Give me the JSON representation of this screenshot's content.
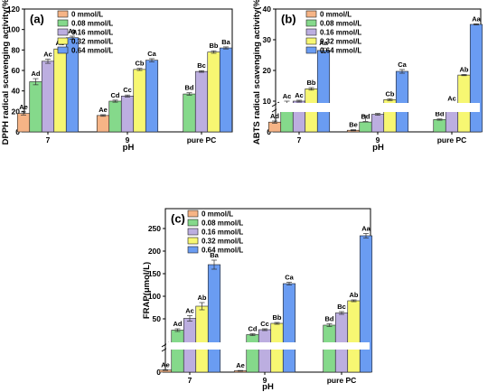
{
  "chart_data": [
    {
      "panel": "(a)",
      "type": "bar",
      "categories": [
        "7",
        "9",
        "pure PC"
      ],
      "xlabel": "pH",
      "ylabel": "DPPH radical scavenging activity(%)",
      "ylim": [
        0,
        120
      ],
      "yticks": [
        0,
        20,
        40,
        60,
        80,
        100,
        120
      ],
      "legend_position": "top-left",
      "series": [
        {
          "name": "0 mmol/L",
          "color": "#f6b486",
          "values": [
            18,
            16,
            null
          ],
          "errors": [
            1.5,
            0.8,
            null
          ],
          "labels": [
            "Ae",
            "Ae",
            null
          ]
        },
        {
          "name": "0.08 mmol/L",
          "color": "#85d98b",
          "values": [
            49,
            30,
            37
          ],
          "errors": [
            3,
            1,
            1.2
          ],
          "labels": [
            "Ad",
            "Cd",
            "Bd"
          ]
        },
        {
          "name": "0.16 mmol/L",
          "color": "#bcaee0",
          "values": [
            69,
            35,
            59
          ],
          "errors": [
            2,
            1,
            0.8
          ],
          "labels": [
            "Ac",
            "Cc",
            "Bc"
          ]
        },
        {
          "name": "0.32 mmol/L",
          "color": "#f7f772",
          "values": [
            81,
            61,
            78
          ],
          "errors": [
            1,
            1,
            1.2
          ],
          "labels": [
            "Ab",
            "Cb",
            "Bb"
          ]
        },
        {
          "name": "0.64 mmol/L",
          "color": "#6a9cf2",
          "values": [
            92,
            70,
            82
          ],
          "errors": [
            1.5,
            1.5,
            1
          ],
          "labels": [
            "Aa",
            "Ca",
            "Ba"
          ]
        }
      ]
    },
    {
      "panel": "(b)",
      "type": "bar",
      "categories": [
        "7",
        "9",
        "pure PC"
      ],
      "xlabel": "pH",
      "ylabel": "ABTS radical scavenging activity(%)",
      "ylim": [
        0,
        40
      ],
      "yticks": [
        0,
        10,
        20,
        30,
        40
      ],
      "axis_break": true,
      "legend_position": "top-left",
      "series": [
        {
          "name": "0 mmol/L",
          "color": "#f6b486",
          "values": [
            1.8,
            0.3,
            null
          ],
          "errors": [
            0.2,
            0.1,
            null
          ],
          "labels": [
            "Ad",
            "Be",
            null
          ]
        },
        {
          "name": "0.08 mmol/L",
          "color": "#85d98b",
          "values": [
            8.5,
            3.2,
            4.0
          ],
          "errors": [
            1.5,
            0.2,
            0.2
          ],
          "labels": [
            "Ac",
            "Bd",
            "Bd"
          ]
        },
        {
          "name": "0.16 mmol/L",
          "color": "#bcaee0",
          "values": [
            10.0,
            5.7,
            9.0
          ],
          "errors": [
            0.3,
            0.3,
            0.3
          ],
          "labels": [
            "Ac",
            "Bc",
            "Ac"
          ]
        },
        {
          "name": "0.32 mmol/L",
          "color": "#f7f772",
          "values": [
            14.0,
            10.5,
            18.5
          ],
          "errors": [
            0.4,
            0.3,
            0.2
          ],
          "labels": [
            "Bb",
            "Cb",
            "Ab"
          ]
        },
        {
          "name": "0.64 mmol/L",
          "color": "#6a9cf2",
          "values": [
            26.5,
            19.7,
            35.0
          ],
          "errors": [
            0.8,
            0.6,
            0.2
          ],
          "labels": [
            "Aa",
            "Ca",
            "Aa"
          ]
        }
      ]
    },
    {
      "panel": "(c)",
      "type": "bar",
      "categories": [
        "7",
        "9",
        "pure PC"
      ],
      "xlabel": "pH",
      "ylabel": "FRAP(μmol/L)",
      "ylim": [
        0,
        250
      ],
      "yticks": [
        0,
        50,
        100,
        150,
        200,
        250
      ],
      "axis_break": true,
      "legend_position": "top-left",
      "series": [
        {
          "name": "0 mmol/L",
          "color": "#f6b486",
          "values": [
            3,
            2,
            null
          ],
          "errors": [
            0.5,
            0.5,
            null
          ],
          "labels": [
            "Ae",
            "Ae",
            null
          ]
        },
        {
          "name": "0.08 mmol/L",
          "color": "#85d98b",
          "values": [
            25,
            15,
            36
          ],
          "errors": [
            3,
            2,
            3
          ],
          "labels": [
            "Ad",
            "Cd",
            "Bd"
          ]
        },
        {
          "name": "0.16 mmol/L",
          "color": "#bcaee0",
          "values": [
            51,
            26,
            63
          ],
          "errors": [
            6,
            2,
            3
          ],
          "labels": [
            "Ac",
            "Cc",
            "Bc"
          ]
        },
        {
          "name": "0.32 mmol/L",
          "color": "#f7f772",
          "values": [
            78,
            40,
            90
          ],
          "errors": [
            8,
            2,
            2
          ],
          "labels": [
            "Ab",
            "Bb",
            "Ab"
          ]
        },
        {
          "name": "0.64 mmol/L",
          "color": "#6a9cf2",
          "values": [
            170,
            128,
            234
          ],
          "errors": [
            10,
            3,
            5
          ],
          "labels": [
            "Ba",
            "Ca",
            "Aa"
          ]
        }
      ]
    }
  ]
}
